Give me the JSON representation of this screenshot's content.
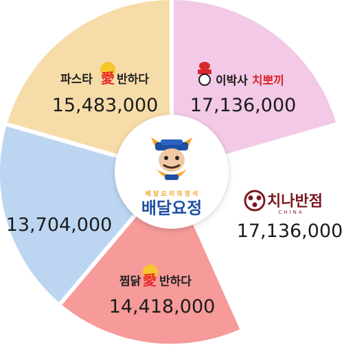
{
  "chart_data": {
    "type": "pie",
    "center": {
      "tagline": "배 달 요 리 의 정 석",
      "name": "배달요정"
    },
    "segments": [
      {
        "name_parts": [
          "파스타",
          "愛",
          "반하다"
        ],
        "display": "15,483,000",
        "value": 15483000,
        "color": "#f6dca8"
      },
      {
        "name_parts": [
          "이박사",
          "치뽀끼"
        ],
        "display": "17,136,000",
        "value": 17136000,
        "color": "#f2c9e6"
      },
      {
        "name_parts": [
          "치나반점",
          "CHINA"
        ],
        "display": "17,136,000",
        "value": 17136000,
        "color": "#ffffff"
      },
      {
        "name_parts": [
          "찜닭",
          "愛",
          "반하다"
        ],
        "display": "14,418,000",
        "value": 14418000,
        "color": "#f69a9a"
      },
      {
        "name_parts": [],
        "display": "13,704,000",
        "value": 13704000,
        "color": "#bcd6f2"
      }
    ]
  }
}
